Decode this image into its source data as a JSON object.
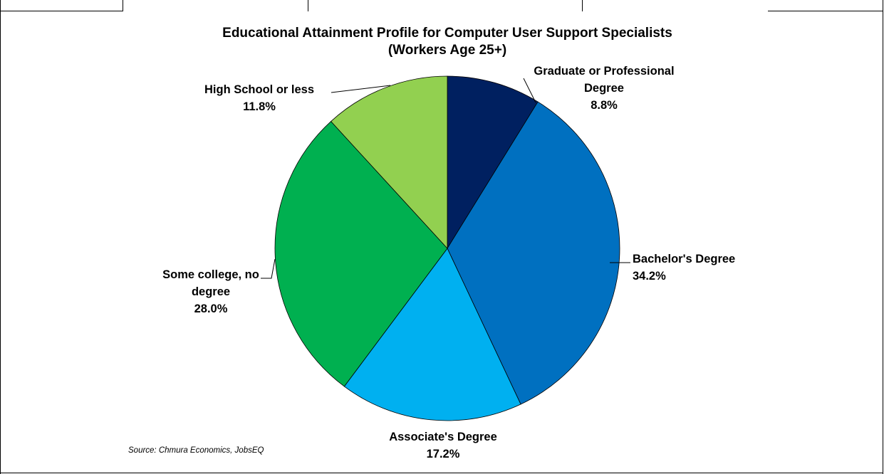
{
  "chart_data": {
    "type": "pie",
    "title": "Educational Attainment Profile for Computer User Support Specialists",
    "subtitle": "(Workers Age 25+)",
    "slices": [
      {
        "label": "Graduate or Professional Degree",
        "label_lines": [
          "Graduate or Professional",
          "Degree"
        ],
        "value": 8.8,
        "value_label": "8.8%",
        "color": "#002060"
      },
      {
        "label": "Bachelor's Degree",
        "label_lines": [
          "Bachelor's Degree"
        ],
        "value": 34.2,
        "value_label": "34.2%",
        "color": "#0070C0"
      },
      {
        "label": "Associate's Degree",
        "label_lines": [
          "Associate's Degree"
        ],
        "value": 17.2,
        "value_label": "17.2%",
        "color": "#00B0F0"
      },
      {
        "label": "Some college, no degree",
        "label_lines": [
          "Some college, no",
          "degree"
        ],
        "value": 28.0,
        "value_label": "28.0%",
        "color": "#00B050"
      },
      {
        "label": "High School or less",
        "label_lines": [
          "High School or less"
        ],
        "value": 11.8,
        "value_label": "11.8%",
        "color": "#92D050"
      }
    ],
    "source": "Source: Chmura Economics, JobsEQ"
  }
}
